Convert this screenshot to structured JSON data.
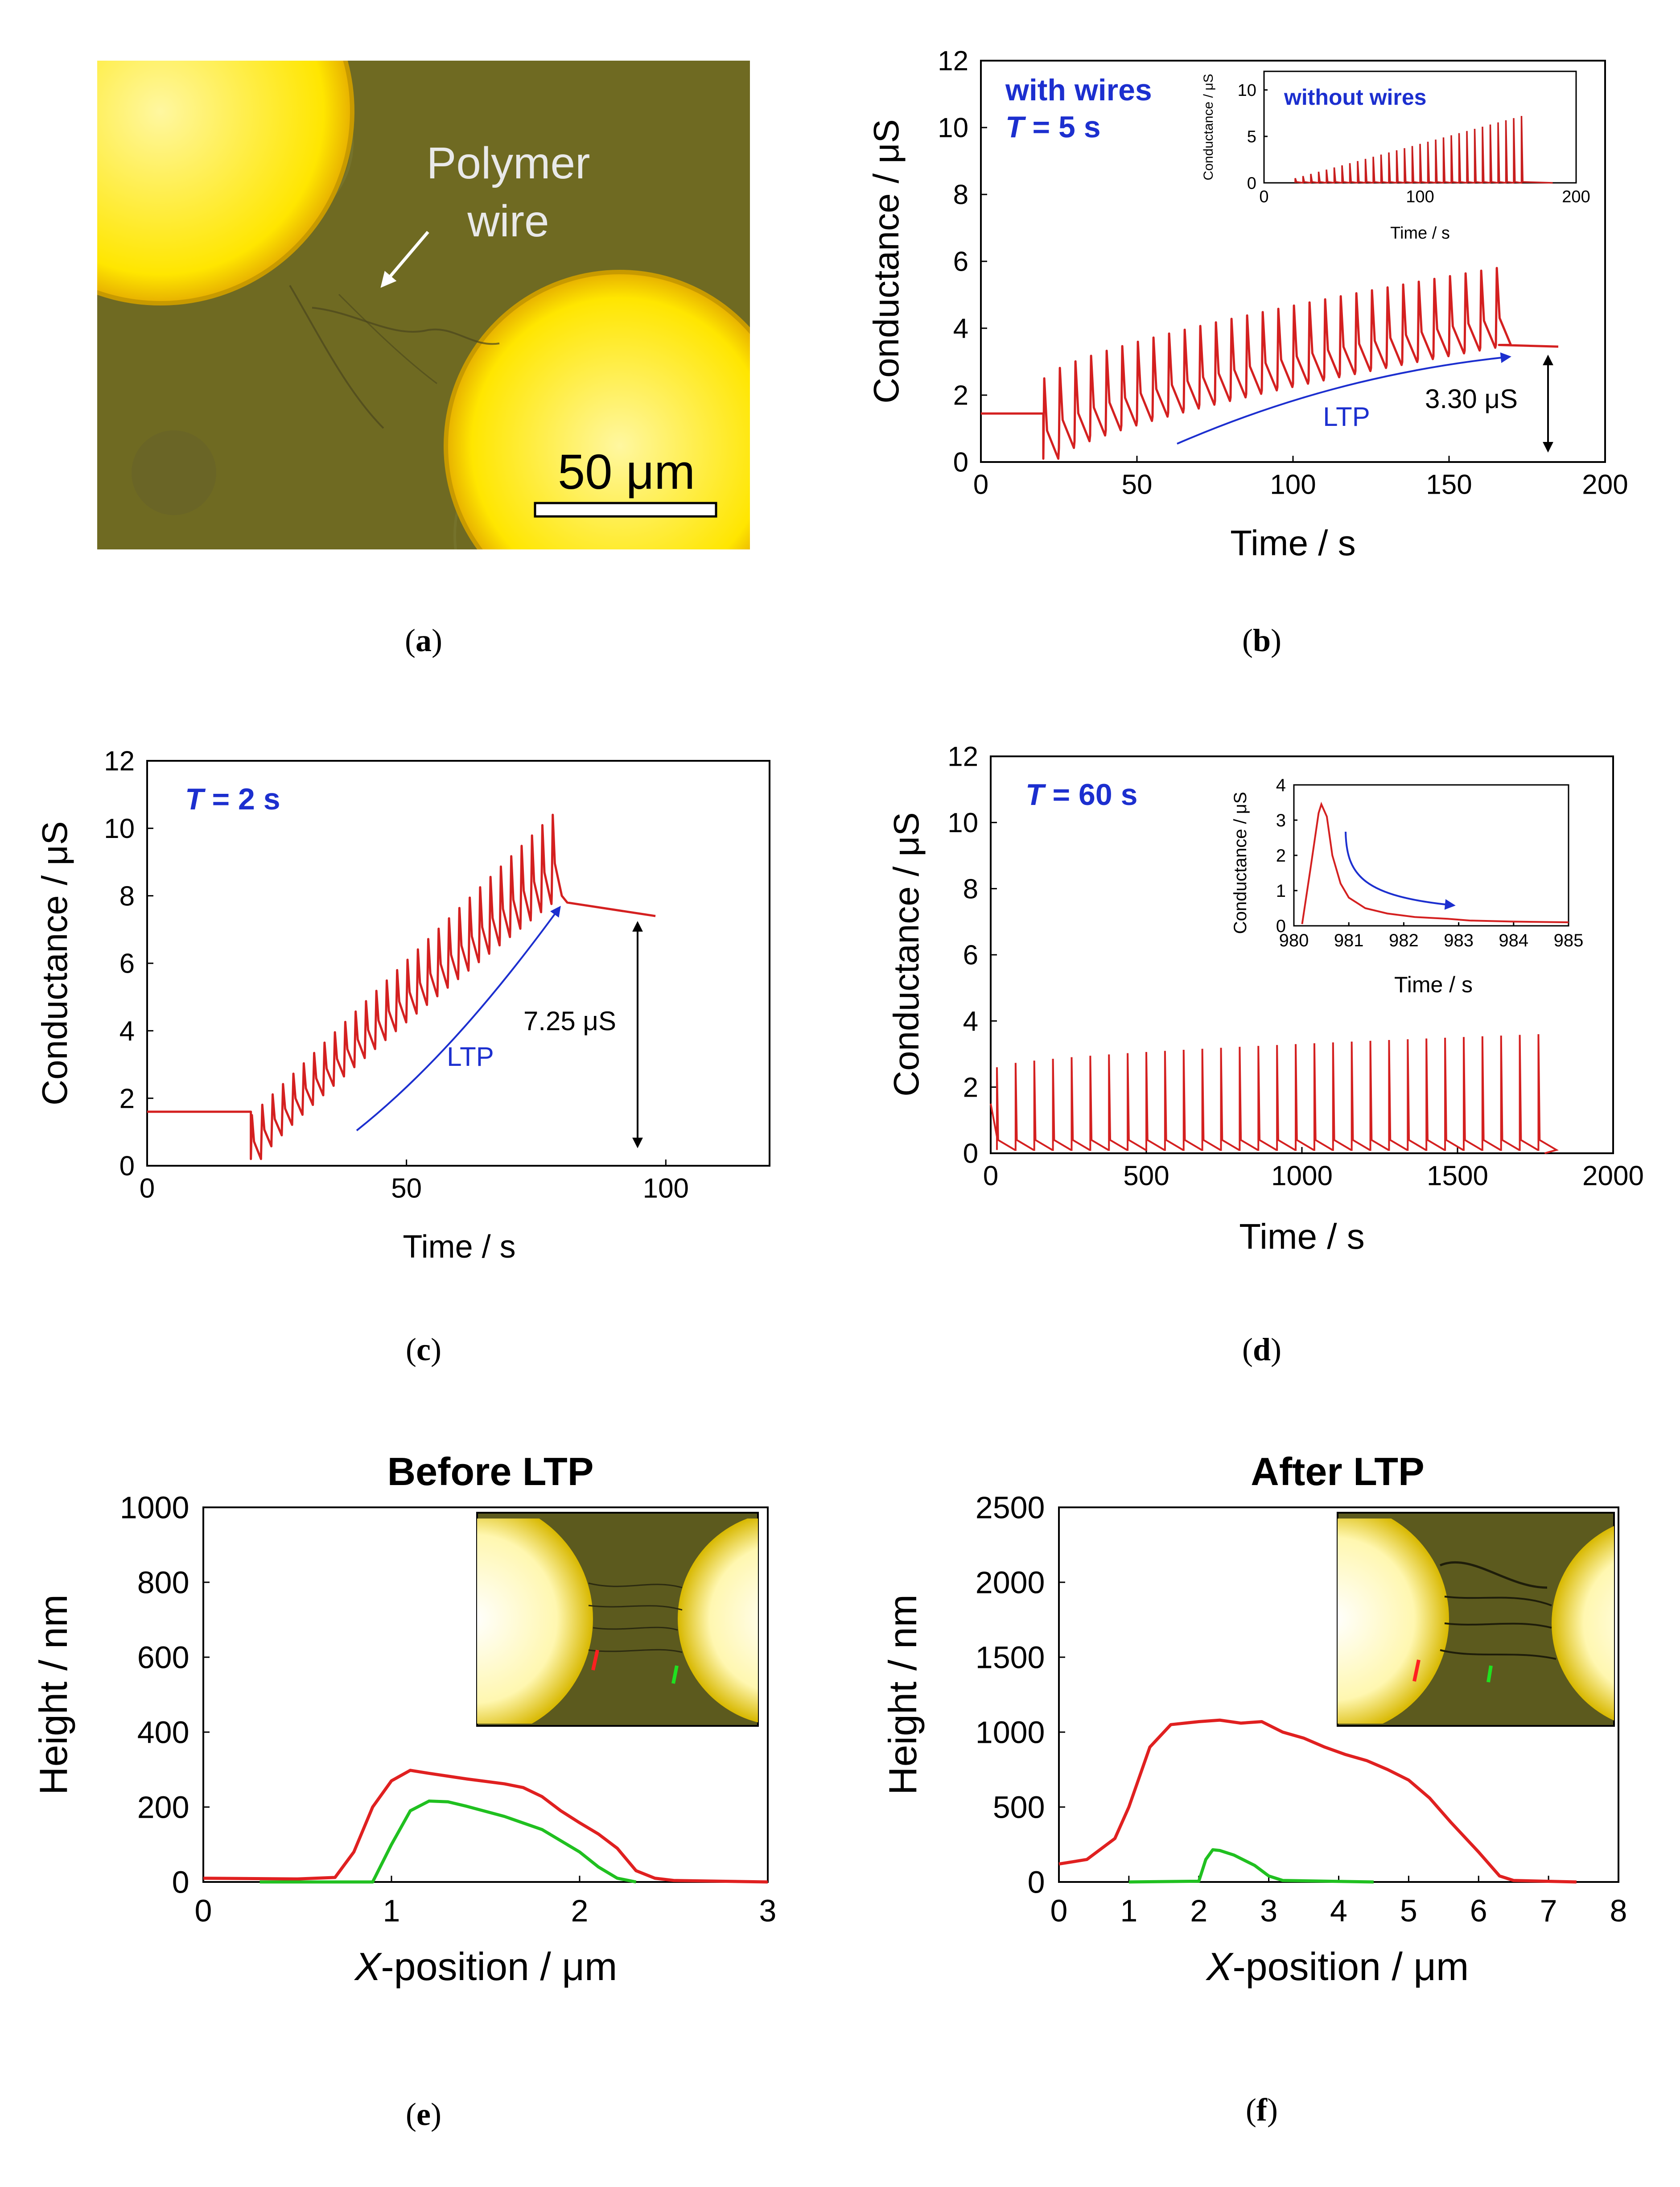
{
  "panels": {
    "a": {
      "caption": "a",
      "label": "Polymer wire",
      "label_lines": [
        "Polymer",
        "wire"
      ],
      "scale_bar_text": "50 μm",
      "colors": {
        "background": "#6f6a22",
        "electrode": "#ffea00",
        "rim": "#e8b400"
      }
    },
    "b": {
      "caption": "b"
    },
    "c": {
      "caption": "c"
    },
    "d": {
      "caption": "d"
    },
    "e": {
      "caption": "e"
    },
    "f": {
      "caption": "f"
    }
  },
  "chart_data": [
    {
      "id": "b",
      "type": "line",
      "title": "",
      "xlabel": "Time / s",
      "ylabel": "Conductance / μS",
      "xlim": [
        0,
        200
      ],
      "ylim": [
        0,
        12
      ],
      "xticks": [
        0,
        50,
        100,
        150,
        200
      ],
      "yticks": [
        0,
        2,
        4,
        6,
        8,
        10,
        12
      ],
      "grid": false,
      "color": "#d42020",
      "annotations": {
        "condition_line1": "with wires",
        "condition_line2_var": "T",
        "condition_line2_rest": " = 5 s",
        "arrow_label": "LTP",
        "delta_label": "3.30 μS"
      },
      "series": [
        {
          "name": "with wires",
          "baseline": 1.45,
          "pulse_start": 20,
          "pulse_end": 165,
          "pulse_period": 5,
          "peak_first": 2.5,
          "peak_last": 5.8,
          "trough_first": 0.1,
          "trough_last": 3.5,
          "final_value": 3.45,
          "end_time": 185
        }
      ],
      "inset": {
        "title": "without wires",
        "xlabel": "Time / s",
        "ylabel": "Conductance / μS",
        "xlim": [
          0,
          200
        ],
        "ylim": [
          0,
          12
        ],
        "xticks": [
          0,
          100,
          200
        ],
        "yticks": [
          0,
          5,
          10
        ],
        "series": [
          {
            "pulse_start": 20,
            "pulse_end": 165,
            "pulse_period": 5,
            "peak_first": 0.5,
            "peak_last": 7.2,
            "baseline": 0
          }
        ]
      }
    },
    {
      "id": "c",
      "type": "line",
      "title": "",
      "xlabel": "Time / s",
      "ylabel": "Conductance / μS",
      "xlim": [
        0,
        120
      ],
      "ylim": [
        0,
        12
      ],
      "xticks": [
        0,
        50,
        100
      ],
      "yticks": [
        0,
        2,
        4,
        6,
        8,
        10,
        12
      ],
      "grid": false,
      "color": "#d42020",
      "annotations": {
        "condition_var": "T",
        "condition_rest": " = 2 s",
        "arrow_label": "LTP",
        "delta_label": "7.25 μS"
      },
      "series": [
        {
          "baseline": 1.6,
          "pulse_start": 20,
          "pulse_end": 78,
          "pulse_period": 2,
          "peak_first": 1.5,
          "peak_last": 10.4,
          "trough_first": 0.2,
          "trough_last": 8.0,
          "final_value": 7.4,
          "end_time": 98
        }
      ]
    },
    {
      "id": "d",
      "type": "line",
      "title": "",
      "xlabel": "Time / s",
      "ylabel": "Conductance / μS",
      "xlim": [
        0,
        2000
      ],
      "ylim": [
        0,
        12
      ],
      "xticks": [
        0,
        500,
        1000,
        1500,
        2000
      ],
      "yticks": [
        0,
        2,
        4,
        6,
        8,
        10,
        12
      ],
      "grid": false,
      "color": "#d42020",
      "annotations": {
        "condition_var": "T",
        "condition_rest": " = 60 s"
      },
      "series": [
        {
          "pulse_start": 20,
          "pulse_end": 1760,
          "pulse_period": 60,
          "peak_first": 2.6,
          "peak_last": 3.6,
          "trough": 0.1,
          "end_time": 1780
        }
      ],
      "inset": {
        "xlabel": "Time / s",
        "ylabel": "Conductance / μS",
        "xlim": [
          980,
          985
        ],
        "ylim": [
          0,
          4
        ],
        "xticks": [
          980,
          981,
          982,
          983,
          984,
          985
        ],
        "yticks": [
          0,
          1,
          2,
          3,
          4
        ],
        "series": [
          {
            "peak_time": 980.5,
            "peak_value": 3.45,
            "end_value": 0.1
          }
        ]
      }
    },
    {
      "id": "e",
      "type": "line",
      "title": "Before LTP",
      "xlabel_var": "X",
      "xlabel_rest": "-position / μm",
      "ylabel": "Height / nm",
      "xlim": [
        0,
        3
      ],
      "ylim": [
        0,
        1000
      ],
      "xticks": [
        0,
        1,
        2,
        3
      ],
      "yticks": [
        0,
        200,
        400,
        600,
        800,
        1000
      ],
      "grid": false,
      "series": [
        {
          "name": "red profile",
          "color": "#e02020",
          "x": [
            0,
            0.5,
            0.7,
            0.8,
            0.9,
            1.0,
            1.1,
            1.2,
            1.4,
            1.6,
            1.7,
            1.8,
            1.9,
            2.0,
            2.1,
            2.2,
            2.3,
            2.4,
            2.5,
            3.0
          ],
          "y": [
            10,
            8,
            12,
            80,
            200,
            270,
            298,
            290,
            275,
            262,
            252,
            228,
            190,
            158,
            128,
            90,
            30,
            10,
            4,
            0
          ]
        },
        {
          "name": "green profile",
          "color": "#20c020",
          "x": [
            0.3,
            0.9,
            1.0,
            1.1,
            1.2,
            1.3,
            1.4,
            1.6,
            1.8,
            2.0,
            2.1,
            2.2,
            2.3
          ],
          "y": [
            0,
            0,
            100,
            190,
            216,
            214,
            202,
            175,
            140,
            80,
            40,
            10,
            0
          ]
        }
      ],
      "inset": {
        "type": "photo",
        "markers": [
          "red",
          "green"
        ]
      }
    },
    {
      "id": "f",
      "type": "line",
      "title": "After LTP",
      "xlabel_var": "X",
      "xlabel_rest": "-position / μm",
      "ylabel": "Height / nm",
      "xlim": [
        0,
        8
      ],
      "ylim": [
        0,
        2500
      ],
      "xticks": [
        0,
        1,
        2,
        3,
        4,
        5,
        6,
        7,
        8
      ],
      "yticks": [
        0,
        500,
        1000,
        1500,
        2000,
        2500
      ],
      "grid": false,
      "series": [
        {
          "name": "red profile",
          "color": "#e02020",
          "x": [
            0,
            0.4,
            0.8,
            1.0,
            1.3,
            1.6,
            2.0,
            2.3,
            2.6,
            2.9,
            3.2,
            3.5,
            3.8,
            4.1,
            4.4,
            4.7,
            5.0,
            5.3,
            5.6,
            6.0,
            6.3,
            6.5,
            7.4
          ],
          "y": [
            120,
            150,
            290,
            500,
            900,
            1050,
            1070,
            1080,
            1060,
            1070,
            1000,
            960,
            900,
            850,
            810,
            750,
            680,
            560,
            400,
            200,
            40,
            10,
            0
          ]
        },
        {
          "name": "green profile",
          "color": "#20c020",
          "x": [
            1.0,
            2.0,
            2.1,
            2.2,
            2.3,
            2.5,
            2.8,
            3.0,
            3.2,
            4.5
          ],
          "y": [
            0,
            5,
            150,
            215,
            210,
            180,
            110,
            40,
            10,
            0
          ]
        }
      ],
      "inset": {
        "type": "photo",
        "markers": [
          "red",
          "green"
        ]
      }
    }
  ]
}
